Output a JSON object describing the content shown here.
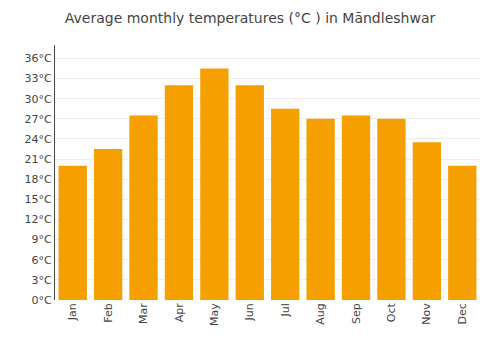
{
  "chart_data": {
    "type": "bar",
    "title": "Average monthly temperatures (°C ) in Māndleshwar",
    "categories": [
      "Jan",
      "Feb",
      "Mar",
      "Apr",
      "May",
      "Jun",
      "Jul",
      "Aug",
      "Sep",
      "Oct",
      "Nov",
      "Dec"
    ],
    "values": [
      20,
      22.5,
      27.5,
      32,
      34.5,
      32,
      28.5,
      27,
      27.5,
      27,
      23.5,
      20
    ],
    "color": "#F5A000",
    "ylim": [
      0,
      38
    ],
    "yticks": [
      {
        "value": 0,
        "label": "0°C"
      },
      {
        "value": 3,
        "label": "3°C"
      },
      {
        "value": 6,
        "label": "6°C"
      },
      {
        "value": 9,
        "label": "9°C"
      },
      {
        "value": 12,
        "label": "12°C"
      },
      {
        "value": 15,
        "label": "15°C"
      },
      {
        "value": 18,
        "label": "18°C"
      },
      {
        "value": 21,
        "label": "21°C"
      },
      {
        "value": 24,
        "label": "24°C"
      },
      {
        "value": 27,
        "label": "27°C"
      },
      {
        "value": 30,
        "label": "30°C"
      },
      {
        "value": 33,
        "label": "33°C"
      },
      {
        "value": 36,
        "label": "36°C"
      }
    ],
    "grid": true
  }
}
